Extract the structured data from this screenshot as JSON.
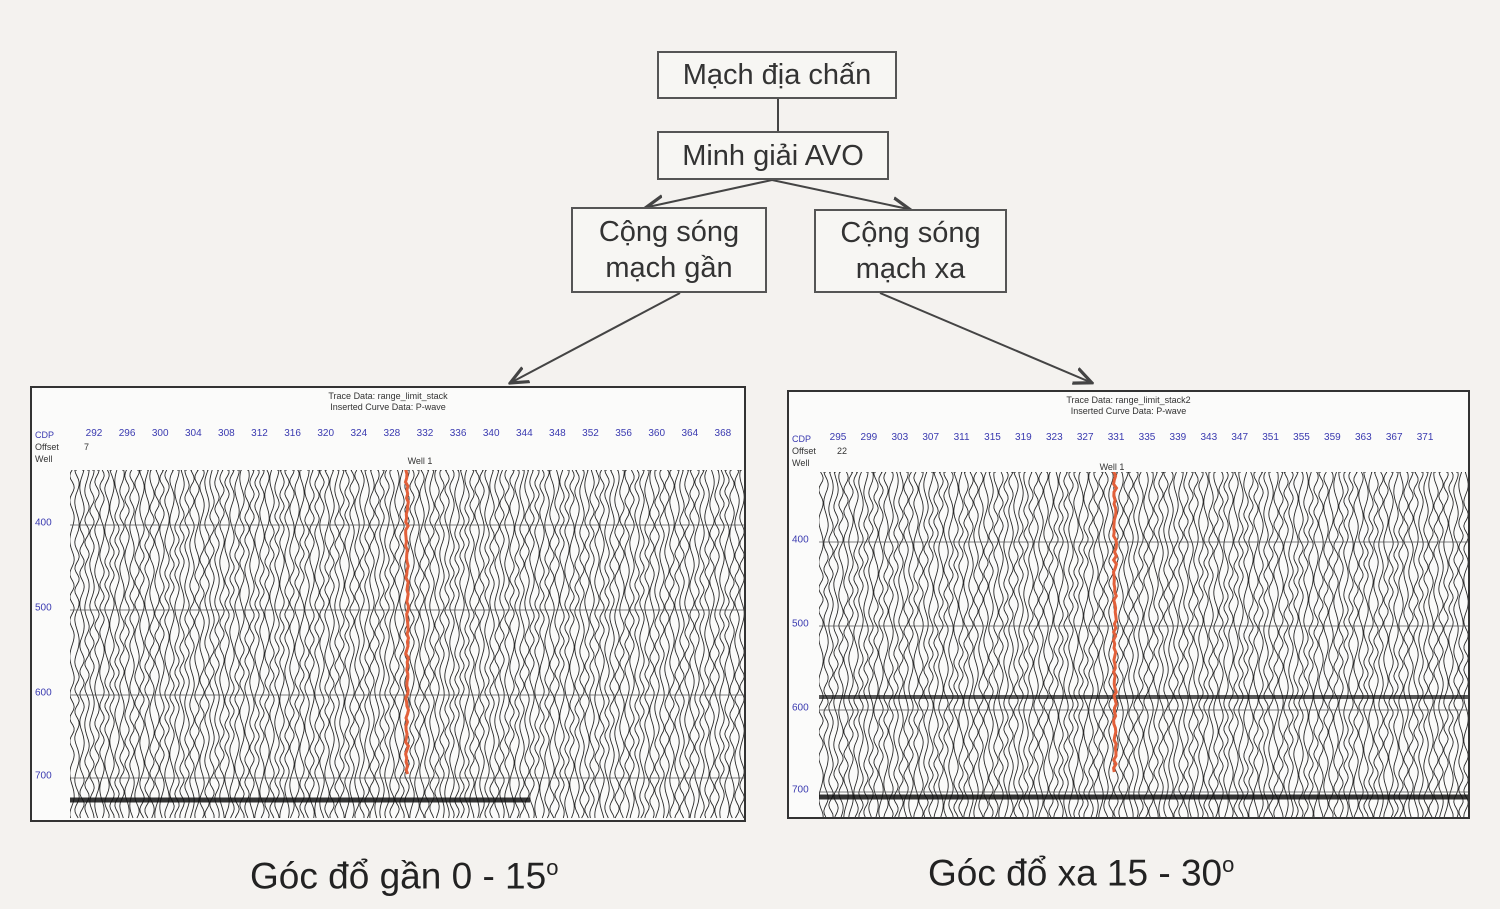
{
  "nodes": {
    "root": "Mạch địa chấn",
    "avo": "Minh giải AVO",
    "near": [
      "Cộng sóng",
      "mạch gần"
    ],
    "far": [
      "Cộng sóng",
      "mạch xa"
    ]
  },
  "panels": [
    {
      "trace_data": "Trace Data: range_limit_stack",
      "curve_data": "Inserted Curve Data: P-wave",
      "cdp_label": "CDP",
      "offset_label": "Offset",
      "offset_value": "7",
      "well_label": "Well",
      "well_name": "Well 1",
      "cdp_ticks": [
        "292",
        "296",
        "300",
        "304",
        "308",
        "312",
        "316",
        "320",
        "324",
        "328",
        "332",
        "336",
        "340",
        "344",
        "348",
        "352",
        "356",
        "360",
        "364",
        "368"
      ],
      "time_ticks": [
        "400",
        "500",
        "600",
        "700"
      ],
      "caption": "Góc đổ gần 0 - 15",
      "caption_sup": "o"
    },
    {
      "trace_data": "Trace Data: range_limit_stack2",
      "curve_data": "Inserted Curve Data: P-wave",
      "cdp_label": "CDP",
      "offset_label": "Offset",
      "offset_value": "22",
      "well_label": "Well",
      "well_name": "Well 1",
      "cdp_ticks": [
        "295",
        "299",
        "303",
        "307",
        "311",
        "315",
        "319",
        "323",
        "327",
        "331",
        "335",
        "339",
        "343",
        "347",
        "351",
        "355",
        "359",
        "363",
        "367",
        "371"
      ],
      "time_ticks": [
        "400",
        "500",
        "600",
        "700"
      ],
      "caption": "Góc đổ xa 15 - 30",
      "caption_sup": "o"
    }
  ],
  "colors": {
    "well_log": "#e2603a",
    "axis_text": "#3a3ab0",
    "box_border": "#555555"
  }
}
